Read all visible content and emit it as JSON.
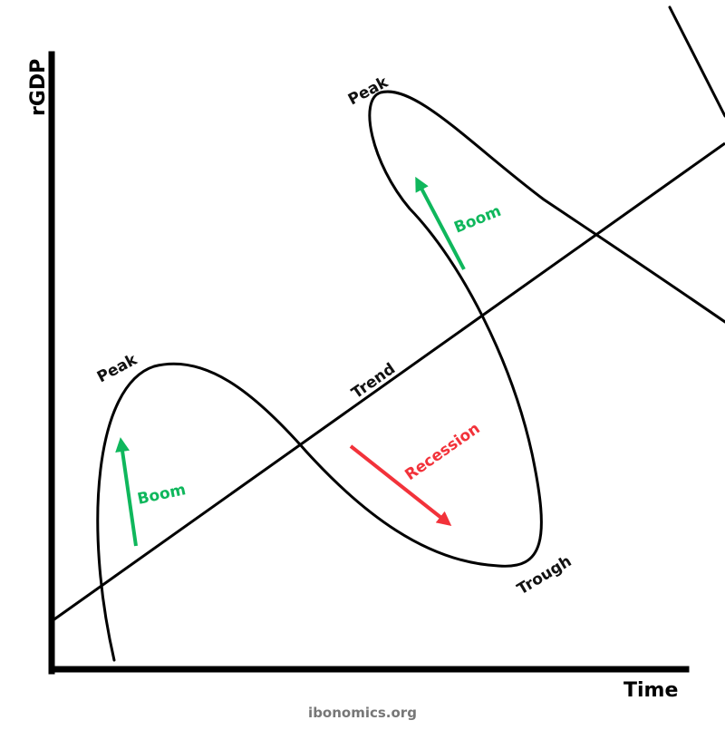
{
  "labels": {
    "y_axis": "rGDP",
    "x_axis": "Time",
    "trend": "Trend",
    "peak_1": "Peak",
    "peak_2": "Peak",
    "trough": "Trough",
    "boom_1": "Boom",
    "boom_2": "Boom",
    "recession": "Recession"
  },
  "footer": "ibonomics.org",
  "colors": {
    "line": "#000000",
    "boom": "#0fb75c",
    "recession": "#f2323a",
    "footer": "#777777"
  }
}
